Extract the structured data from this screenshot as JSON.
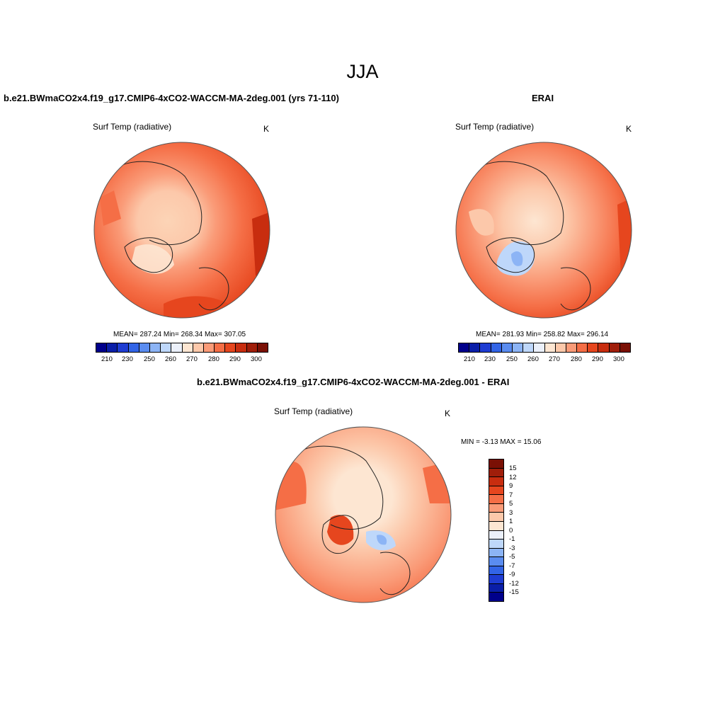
{
  "title": "JJA",
  "panels": {
    "model": {
      "title": "b.e21.BWmaCO2x4.f19_g17.CMIP6-4xCO2-WACCM-MA-2deg.001 (yrs 71-110)",
      "variable": "Surf Temp (radiative)",
      "units": "K",
      "stats": "MEAN= 287.24  Min= 268.34  Max= 307.05"
    },
    "obs": {
      "title": "ERAI",
      "variable": "Surf Temp (radiative)",
      "units": "K",
      "stats": "MEAN= 281.93  Min= 258.82  Max= 296.14"
    },
    "diff": {
      "title": "b.e21.BWmaCO2x4.f19_g17.CMIP6-4xCO2-WACCM-MA-2deg.001 - ERAI",
      "variable": "Surf Temp (radiative)",
      "units": "K",
      "stats": "MIN =  -3.13 MAX =  15.06"
    }
  },
  "colorbar_abs": {
    "ticks": [
      "210",
      "230",
      "250",
      "260",
      "270",
      "280",
      "290",
      "300"
    ],
    "colors": [
      "#00008b",
      "#0a1ea8",
      "#1e3cd2",
      "#3264e6",
      "#5a8cf0",
      "#8cb4f5",
      "#bed7fa",
      "#ebf0fa",
      "#fde6d2",
      "#fcc8aa",
      "#fa9b78",
      "#f56e46",
      "#e6461e",
      "#c82d0f",
      "#a01e0a",
      "#7a1005"
    ]
  },
  "colorbar_diff": {
    "ticks": [
      "15",
      "12",
      "9",
      "7",
      "5",
      "3",
      "1",
      "0",
      "-1",
      "-3",
      "-5",
      "-7",
      "-9",
      "-12",
      "-15"
    ],
    "colors": [
      "#7a1005",
      "#a01e0a",
      "#c82d0f",
      "#e6461e",
      "#f56e46",
      "#fa9b78",
      "#fcc8aa",
      "#fde6d2",
      "#ebf0fa",
      "#bed7fa",
      "#8cb4f5",
      "#5a8cf0",
      "#3264e6",
      "#1e3cd2",
      "#0a1ea8",
      "#00008b"
    ]
  }
}
